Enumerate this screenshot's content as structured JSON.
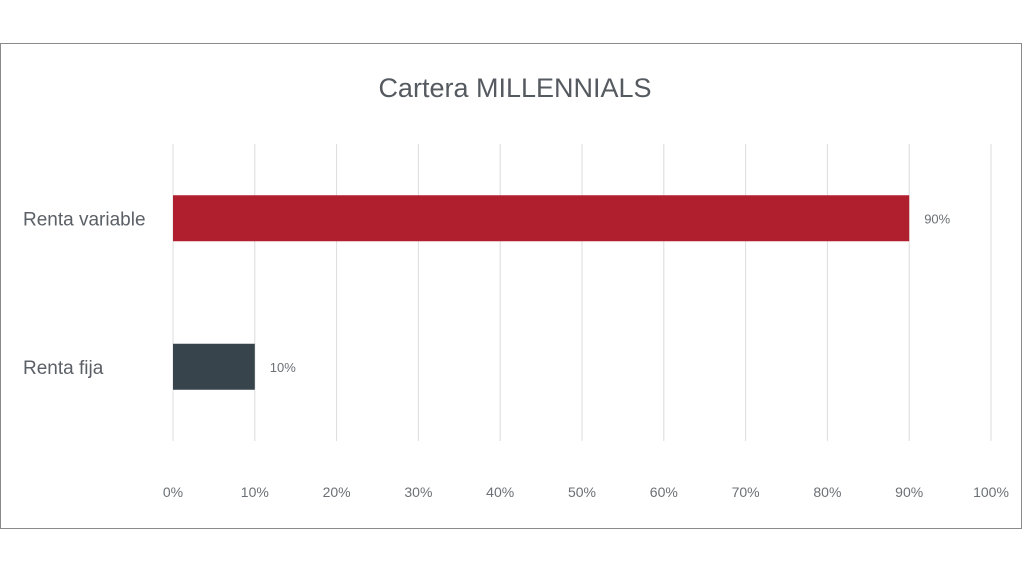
{
  "chart_data": {
    "type": "bar",
    "orientation": "horizontal",
    "title": "Cartera MILLENNIALS",
    "categories": [
      "Renta variable",
      "Renta fija"
    ],
    "values": [
      90,
      10
    ],
    "data_labels": [
      "90%",
      "10%"
    ],
    "colors": [
      "#b01f2e",
      "#37444c"
    ],
    "xlim": [
      0,
      100
    ],
    "x_ticks": [
      0,
      10,
      20,
      30,
      40,
      50,
      60,
      70,
      80,
      90,
      100
    ],
    "x_tick_labels": [
      "0%",
      "10%",
      "20%",
      "30%",
      "40%",
      "50%",
      "60%",
      "70%",
      "80%",
      "90%",
      "100%"
    ],
    "grid": "vertical",
    "legend": "none"
  }
}
